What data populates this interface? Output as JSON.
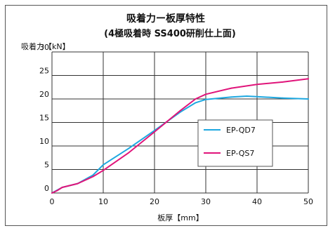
{
  "chart_data": {
    "type": "line",
    "title": "吸着力ー板厚特性",
    "subtitle": "(4極吸着時 SS400研削仕上面)",
    "xlabel": "板厚【mm】",
    "ylabel": "吸着力【kN】",
    "xlim": [
      0,
      50
    ],
    "ylim": [
      0,
      30
    ],
    "x_ticks": [
      "0",
      "10",
      "20",
      "30",
      "40",
      "50"
    ],
    "y_ticks": [
      "0",
      "5",
      "10",
      "15",
      "20",
      "25",
      "30"
    ],
    "grid": true,
    "legend_position": "right-center",
    "series": [
      {
        "name": "EP-QD7",
        "color": "#1ea8e0",
        "points": [
          [
            0,
            0
          ],
          [
            1,
            0.6
          ],
          [
            2,
            1.2
          ],
          [
            5,
            2
          ],
          [
            8,
            3.8
          ],
          [
            10,
            6
          ],
          [
            15,
            9.5
          ],
          [
            20,
            13.3
          ],
          [
            25,
            17.2
          ],
          [
            28,
            19.2
          ],
          [
            30,
            19.9
          ],
          [
            35,
            20.4
          ],
          [
            38,
            20.6
          ],
          [
            40,
            20.5
          ],
          [
            45,
            20.2
          ],
          [
            50,
            20.0
          ]
        ]
      },
      {
        "name": "EP-QS7",
        "color": "#e0147a",
        "points": [
          [
            0,
            0
          ],
          [
            1,
            0.5
          ],
          [
            2,
            1.2
          ],
          [
            5,
            2
          ],
          [
            8,
            3.5
          ],
          [
            10,
            4.8
          ],
          [
            15,
            8.6
          ],
          [
            20,
            13
          ],
          [
            25,
            17.5
          ],
          [
            28,
            20
          ],
          [
            30,
            21
          ],
          [
            35,
            22.3
          ],
          [
            40,
            23.1
          ],
          [
            45,
            23.6
          ],
          [
            50,
            24.3
          ]
        ]
      }
    ]
  }
}
